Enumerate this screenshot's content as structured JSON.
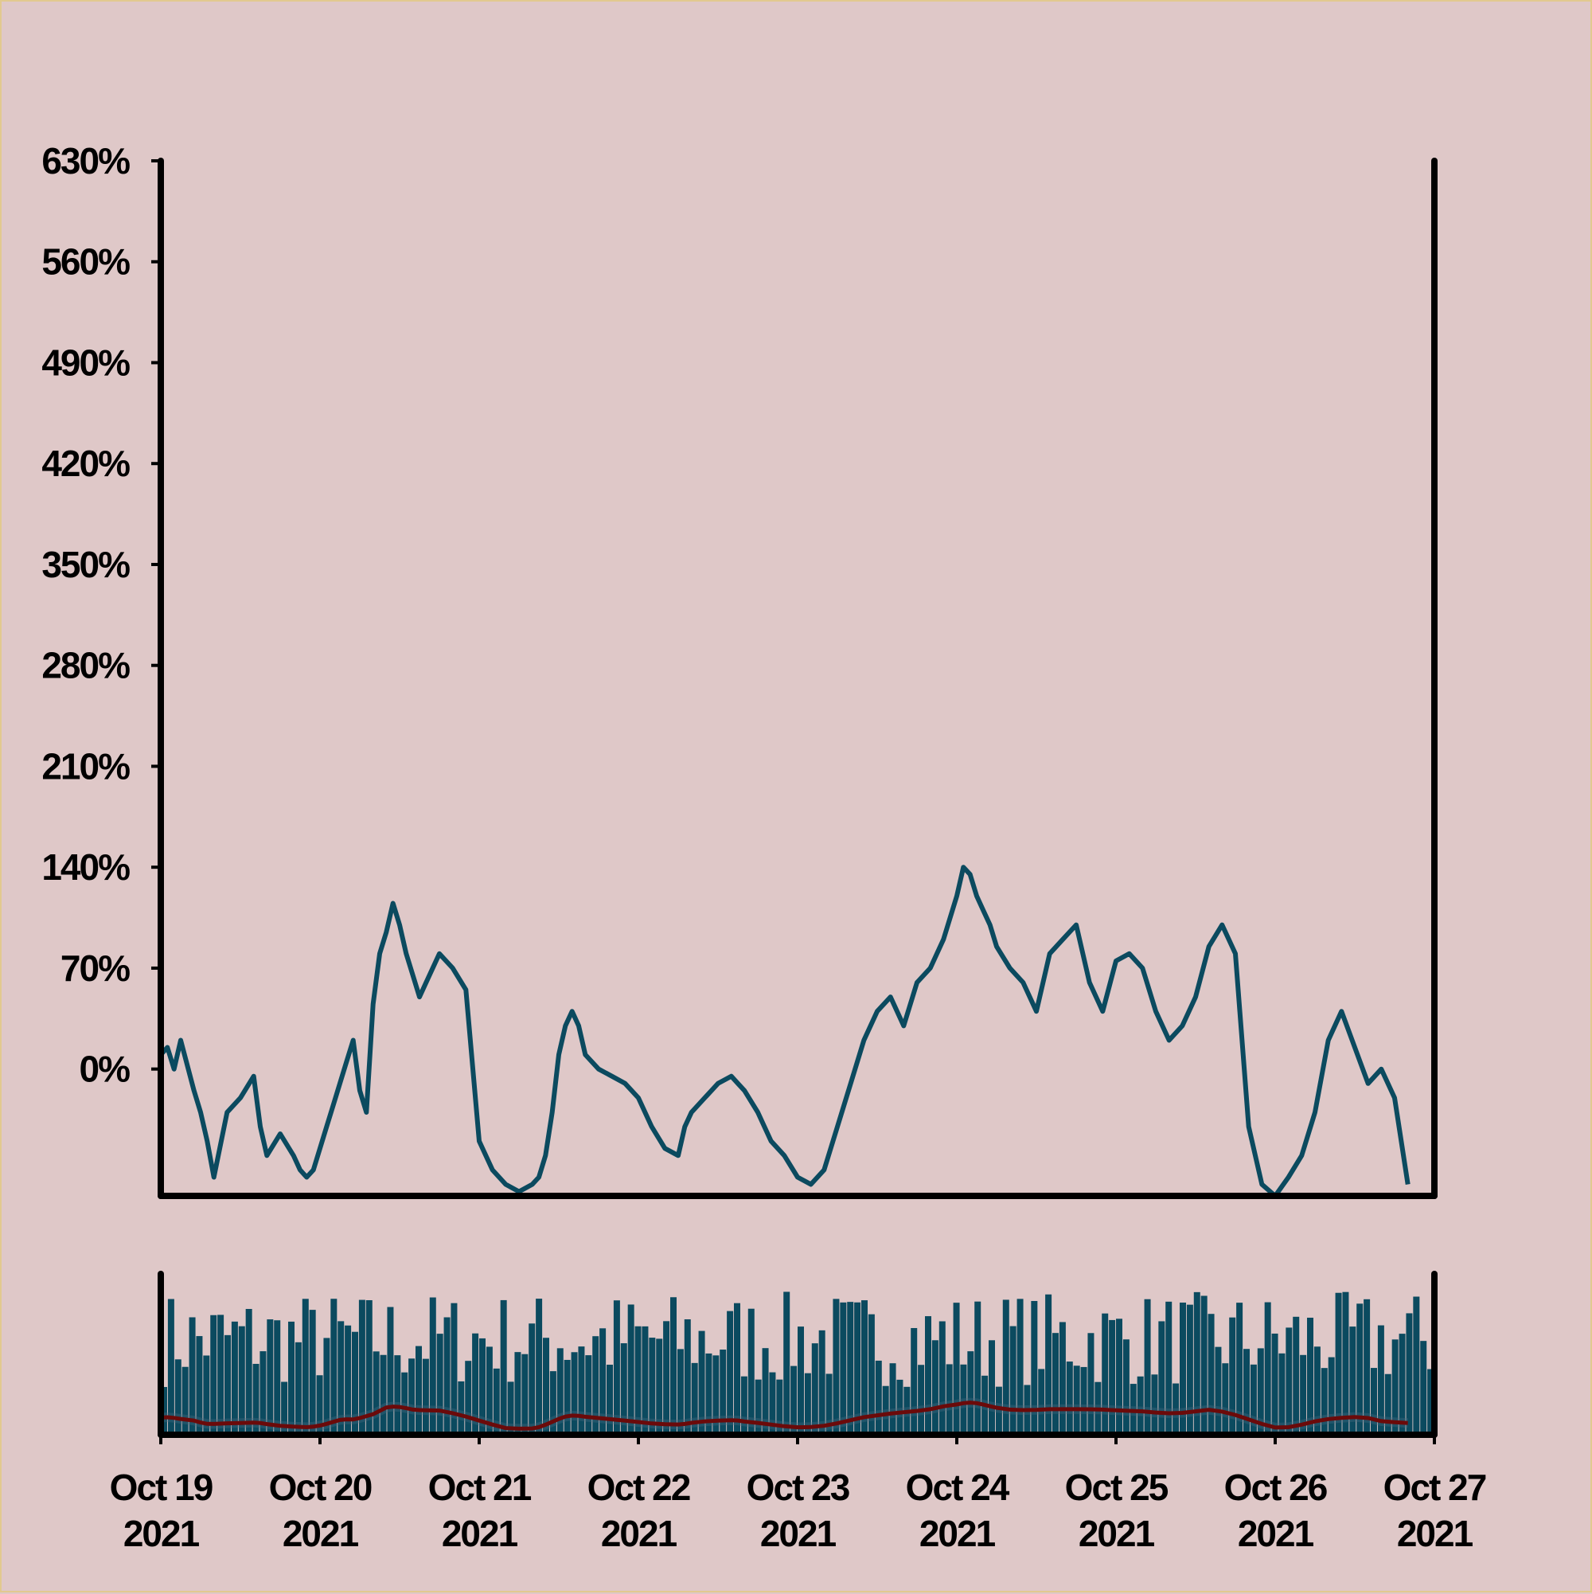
{
  "colors": {
    "background": "#dfc8c8",
    "line": "#0b4a5f",
    "bars": "#0b4a5f",
    "overlay": "#6b0a0a",
    "axis": "#000000"
  },
  "chart_data": {
    "type": "line",
    "title": "",
    "xlabel": "",
    "ylabel": "",
    "x_range": [
      "2021-10-19 00:00",
      "2021-10-27 00:00"
    ],
    "ylim": [
      -88,
      630
    ],
    "y_ticks": [
      "0%",
      "70%",
      "140%",
      "210%",
      "280%",
      "350%",
      "420%",
      "490%",
      "560%",
      "630%"
    ],
    "y_tick_values": [
      0,
      70,
      140,
      210,
      280,
      350,
      420,
      490,
      560,
      630
    ],
    "x_ticks": [
      {
        "line1": "Oct 19",
        "line2": "2021"
      },
      {
        "line1": "Oct 20",
        "line2": "2021"
      },
      {
        "line1": "Oct 21",
        "line2": "2021"
      },
      {
        "line1": "Oct 22",
        "line2": "2021"
      },
      {
        "line1": "Oct 23",
        "line2": "2021"
      },
      {
        "line1": "Oct 24",
        "line2": "2021"
      },
      {
        "line1": "Oct 25",
        "line2": "2021"
      },
      {
        "line1": "Oct 26",
        "line2": "2021"
      },
      {
        "line1": "Oct 27",
        "line2": "2021"
      }
    ],
    "grid": false,
    "legend": "none",
    "series": [
      {
        "values_x": [
          "2021-10-19 00:00",
          "2021-10-19 01:00",
          "2021-10-19 02:00",
          "2021-10-19 03:00",
          "2021-10-19 05:00",
          "2021-10-19 06:00",
          "2021-10-19 07:00",
          "2021-10-19 08:00",
          "2021-10-19 10:00",
          "2021-10-19 12:00",
          "2021-10-19 14:00",
          "2021-10-19 15:00",
          "2021-10-19 16:00",
          "2021-10-19 18:00",
          "2021-10-19 20:00",
          "2021-10-19 21:00",
          "2021-10-19 22:00",
          "2021-10-19 23:00",
          "2021-10-20 00:00",
          "2021-10-20 01:00",
          "2021-10-20 02:00",
          "2021-10-20 03:00",
          "2021-10-20 04:00",
          "2021-10-20 05:00",
          "2021-10-20 06:00",
          "2021-10-20 07:00",
          "2021-10-20 08:00",
          "2021-10-20 09:00",
          "2021-10-20 10:00",
          "2021-10-20 11:00",
          "2021-10-20 12:00",
          "2021-10-20 13:00",
          "2021-10-20 14:00",
          "2021-10-20 15:00",
          "2021-10-20 16:00",
          "2021-10-20 18:00",
          "2021-10-20 20:00",
          "2021-10-20 22:00",
          "2021-10-21 00:00",
          "2021-10-21 02:00",
          "2021-10-21 04:00",
          "2021-10-21 06:00",
          "2021-10-21 08:00",
          "2021-10-21 09:00",
          "2021-10-21 10:00",
          "2021-10-21 11:00",
          "2021-10-21 12:00",
          "2021-10-21 13:00",
          "2021-10-21 14:00",
          "2021-10-21 15:00",
          "2021-10-21 16:00",
          "2021-10-21 18:00",
          "2021-10-21 20:00",
          "2021-10-21 22:00",
          "2021-10-22 00:00",
          "2021-10-22 02:00",
          "2021-10-22 04:00",
          "2021-10-22 06:00",
          "2021-10-22 07:00",
          "2021-10-22 08:00",
          "2021-10-22 10:00",
          "2021-10-22 12:00",
          "2021-10-22 14:00",
          "2021-10-22 15:00",
          "2021-10-22 16:00",
          "2021-10-22 18:00",
          "2021-10-22 20:00",
          "2021-10-22 22:00",
          "2021-10-23 00:00",
          "2021-10-23 02:00",
          "2021-10-23 04:00",
          "2021-10-23 06:00",
          "2021-10-23 08:00",
          "2021-10-23 10:00",
          "2021-10-23 12:00",
          "2021-10-23 14:00",
          "2021-10-23 16:00",
          "2021-10-23 18:00",
          "2021-10-23 20:00",
          "2021-10-23 22:00",
          "2021-10-24 00:00",
          "2021-10-24 01:00",
          "2021-10-24 02:00",
          "2021-10-24 03:00",
          "2021-10-24 04:00",
          "2021-10-24 05:00",
          "2021-10-24 06:00",
          "2021-10-24 08:00",
          "2021-10-24 10:00",
          "2021-10-24 12:00",
          "2021-10-24 14:00",
          "2021-10-24 16:00",
          "2021-10-24 18:00",
          "2021-10-24 20:00",
          "2021-10-24 22:00",
          "2021-10-25 00:00",
          "2021-10-25 02:00",
          "2021-10-25 04:00",
          "2021-10-25 06:00",
          "2021-10-25 08:00",
          "2021-10-25 10:00",
          "2021-10-25 12:00",
          "2021-10-25 14:00",
          "2021-10-25 16:00",
          "2021-10-25 18:00",
          "2021-10-25 20:00",
          "2021-10-25 22:00",
          "2021-10-26 00:00",
          "2021-10-26 02:00",
          "2021-10-26 04:00",
          "2021-10-26 06:00",
          "2021-10-26 08:00",
          "2021-10-26 10:00",
          "2021-10-26 12:00",
          "2021-10-26 14:00",
          "2021-10-26 16:00",
          "2021-10-26 18:00",
          "2021-10-26 20:00",
          "2021-10-26 22:00",
          "2021-10-27 00:00"
        ],
        "values": [
          10,
          15,
          0,
          20,
          -15,
          -30,
          -50,
          -75,
          -30,
          -20,
          -5,
          -40,
          -60,
          -45,
          -60,
          -70,
          -75,
          -70,
          -55,
          -40,
          -25,
          -10,
          5,
          20,
          -15,
          -30,
          45,
          80,
          95,
          115,
          100,
          80,
          65,
          50,
          60,
          80,
          70,
          55,
          -50,
          -70,
          -80,
          -85,
          -80,
          -75,
          -60,
          -30,
          10,
          30,
          40,
          30,
          10,
          0,
          -5,
          -10,
          -20,
          -40,
          -55,
          -60,
          -40,
          -30,
          -20,
          -10,
          -5,
          -10,
          -15,
          -30,
          -50,
          -60,
          -75,
          -80,
          -70,
          -40,
          -10,
          20,
          40,
          50,
          30,
          60,
          70,
          90,
          120,
          140,
          135,
          120,
          110,
          100,
          85,
          70,
          60,
          40,
          80,
          90,
          100,
          60,
          40,
          75,
          80,
          70,
          40,
          20,
          30,
          50,
          85,
          100,
          80,
          -40,
          -80,
          -88,
          -75,
          -60,
          -30,
          20,
          40,
          15,
          -10,
          0,
          -20,
          -80
        ]
      }
    ],
    "volume_panel": {
      "type": "bar",
      "bar_count": 180,
      "overlay_series": "moving-average"
    }
  }
}
